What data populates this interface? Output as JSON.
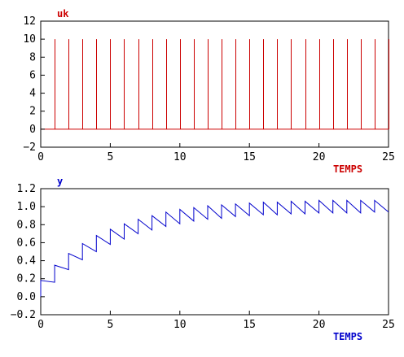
{
  "chart_data": [
    {
      "type": "line",
      "title": "uk",
      "xlabel": "TEMPS",
      "xlim": [
        0,
        25
      ],
      "ylim": [
        -2,
        12
      ],
      "x_ticks": [
        "0",
        "5",
        "10",
        "15",
        "20",
        "25"
      ],
      "y_ticks": [
        "−2",
        "0",
        "2",
        "4",
        "6",
        "8",
        "10",
        "12"
      ],
      "grid": false,
      "color": "#cc0000",
      "style": "impulses",
      "baseline": 0,
      "impulse_times": [
        1,
        2,
        3,
        4,
        5,
        6,
        7,
        8,
        9,
        10,
        11,
        12,
        13,
        14,
        15,
        16,
        17,
        18,
        19,
        20,
        21,
        22,
        23,
        24,
        25
      ],
      "impulse_value": 10
    },
    {
      "type": "line",
      "title": "y",
      "xlabel": "TEMPS",
      "xlim": [
        0,
        25
      ],
      "ylim": [
        -0.2,
        1.2
      ],
      "x_ticks": [
        "0",
        "5",
        "10",
        "15",
        "20",
        "25"
      ],
      "y_ticks": [
        "−0.2",
        "0.0",
        "0.2",
        "0.4",
        "0.6",
        "0.8",
        "1.0",
        "1.2"
      ],
      "grid": false,
      "color": "#0000cc",
      "points": [
        [
          0.0,
          0.0
        ],
        [
          0.0,
          0.18
        ],
        [
          1.0,
          0.16
        ],
        [
          1.0,
          0.35
        ],
        [
          2.0,
          0.3
        ],
        [
          2.0,
          0.48
        ],
        [
          3.0,
          0.41
        ],
        [
          3.0,
          0.59
        ],
        [
          4.0,
          0.5
        ],
        [
          4.0,
          0.68
        ],
        [
          5.0,
          0.58
        ],
        [
          5.0,
          0.75
        ],
        [
          6.0,
          0.64
        ],
        [
          6.0,
          0.81
        ],
        [
          7.0,
          0.7
        ],
        [
          7.0,
          0.86
        ],
        [
          8.0,
          0.74
        ],
        [
          8.0,
          0.9
        ],
        [
          9.0,
          0.78
        ],
        [
          9.0,
          0.94
        ],
        [
          10.0,
          0.81
        ],
        [
          10.0,
          0.97
        ],
        [
          11.0,
          0.84
        ],
        [
          11.0,
          0.99
        ],
        [
          12.0,
          0.86
        ],
        [
          12.0,
          1.01
        ],
        [
          13.0,
          0.87
        ],
        [
          13.0,
          1.02
        ],
        [
          14.0,
          0.89
        ],
        [
          14.0,
          1.03
        ],
        [
          15.0,
          0.9
        ],
        [
          15.0,
          1.04
        ],
        [
          16.0,
          0.91
        ],
        [
          16.0,
          1.05
        ],
        [
          17.0,
          0.91
        ],
        [
          17.0,
          1.05
        ],
        [
          18.0,
          0.92
        ],
        [
          18.0,
          1.06
        ],
        [
          19.0,
          0.92
        ],
        [
          19.0,
          1.06
        ],
        [
          20.0,
          0.93
        ],
        [
          20.0,
          1.07
        ],
        [
          21.0,
          0.93
        ],
        [
          21.0,
          1.07
        ],
        [
          22.0,
          0.93
        ],
        [
          22.0,
          1.07
        ],
        [
          23.0,
          0.93
        ],
        [
          23.0,
          1.07
        ],
        [
          24.0,
          0.94
        ],
        [
          24.0,
          1.07
        ],
        [
          25.0,
          0.94
        ]
      ]
    }
  ]
}
